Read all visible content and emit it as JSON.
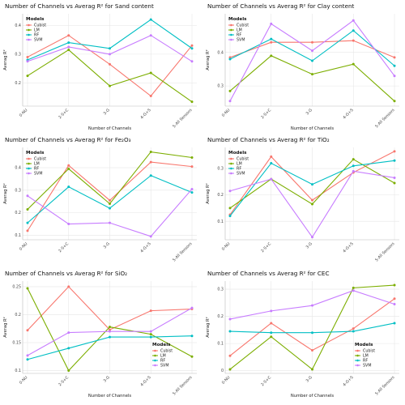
{
  "colors": {
    "Cubist": "#f8766d",
    "LM": "#7cae00",
    "RF": "#00bfc4",
    "SVM": "#c77cff"
  },
  "chart_data": [
    {
      "type": "line",
      "title": "Number of Channels vs Averag R² for Sand content",
      "xlabel": "Number of Channels",
      "ylabel": "Averag R²",
      "categories": [
        "0-NU",
        "2-S+C",
        "3-G",
        "4-G+S",
        "5-All Sensors"
      ],
      "ylim": [
        0.12,
        0.44
      ],
      "yticks": [
        0.2,
        0.3,
        0.4
      ],
      "legend": {
        "title": "Models",
        "position": "top-left"
      },
      "series": [
        {
          "name": "Cubist",
          "values": [
            0.29,
            0.365,
            0.265,
            0.155,
            0.33
          ]
        },
        {
          "name": "LM",
          "values": [
            0.225,
            0.315,
            0.19,
            0.235,
            0.135
          ]
        },
        {
          "name": "RF",
          "values": [
            0.28,
            0.34,
            0.32,
            0.42,
            0.32
          ]
        },
        {
          "name": "SVM",
          "values": [
            0.275,
            0.325,
            0.3,
            0.365,
            0.275
          ]
        }
      ]
    },
    {
      "type": "line",
      "title": "Number of Channels vs Averag R² for Clay content",
      "xlabel": "Number of Channels",
      "ylabel": "Averag R²",
      "categories": [
        "0-NU",
        "2-S+C",
        "3-G",
        "4-G+S",
        "5-All Sensors"
      ],
      "ylim": [
        0.24,
        0.515
      ],
      "yticks": [
        0.3,
        0.4
      ],
      "legend": {
        "title": "Models",
        "position": "top-left"
      },
      "series": [
        {
          "name": "Cubist",
          "values": [
            0.385,
            0.43,
            0.43,
            0.435,
            0.385
          ]
        },
        {
          "name": "LM",
          "values": [
            0.285,
            0.39,
            0.335,
            0.365,
            0.255
          ]
        },
        {
          "name": "RF",
          "values": [
            0.38,
            0.44,
            0.375,
            0.465,
            0.36
          ]
        },
        {
          "name": "SVM",
          "values": [
            0.255,
            0.485,
            0.405,
            0.495,
            0.33
          ]
        }
      ]
    },
    {
      "type": "line",
      "title": "Number of Channels vs Averag R² for Fe₂O₃",
      "xlabel": "",
      "ylabel": "Averag R²",
      "categories": [
        "0-NU",
        "2-S+C",
        "3-G",
        "4-G+S",
        "5-All Sensors"
      ],
      "ylim": [
        0.08,
        0.49
      ],
      "yticks": [
        0.1,
        0.2,
        0.3,
        0.4
      ],
      "legend": {
        "title": "Models",
        "position": "top-left"
      },
      "series": [
        {
          "name": "Cubist",
          "values": [
            0.12,
            0.41,
            0.255,
            0.425,
            0.405
          ]
        },
        {
          "name": "LM",
          "values": [
            0.215,
            0.395,
            0.24,
            0.47,
            0.445
          ]
        },
        {
          "name": "RF",
          "values": [
            0.155,
            0.315,
            0.22,
            0.365,
            0.29
          ]
        },
        {
          "name": "SVM",
          "values": [
            0.275,
            0.15,
            0.155,
            0.095,
            0.305
          ]
        }
      ]
    },
    {
      "type": "line",
      "title": "Number of Channels vs Averag R² for TiO₂",
      "xlabel": "",
      "ylabel": "Averag R²",
      "categories": [
        "0-NU",
        "2-S+C",
        "3-G",
        "4-G+S",
        "5-All Sensors"
      ],
      "ylim": [
        0.03,
        0.38
      ],
      "yticks": [
        0.1,
        0.2,
        0.3
      ],
      "legend": {
        "title": "Models",
        "position": "top-left"
      },
      "series": [
        {
          "name": "Cubist",
          "values": [
            0.125,
            0.345,
            0.18,
            0.285,
            0.365
          ]
        },
        {
          "name": "LM",
          "values": [
            0.15,
            0.26,
            0.165,
            0.335,
            0.245
          ]
        },
        {
          "name": "RF",
          "values": [
            0.12,
            0.32,
            0.24,
            0.31,
            0.33
          ]
        },
        {
          "name": "SVM",
          "values": [
            0.215,
            0.26,
            0.04,
            0.29,
            0.265
          ]
        }
      ]
    },
    {
      "type": "line",
      "title": "Number of Channels vs Averag R² for SiO₂",
      "xlabel": "Number of Channels",
      "ylabel": "Averag R²",
      "categories": [
        "0-NU",
        "2-S+C",
        "3-G",
        "4-G+S",
        "5-All Sensors"
      ],
      "ylim": [
        0.095,
        0.26
      ],
      "yticks": [
        0.1,
        0.15,
        0.2,
        0.25
      ],
      "legend": {
        "title": "Models",
        "position": "bottom-right"
      },
      "series": [
        {
          "name": "Cubist",
          "values": [
            0.172,
            0.25,
            0.173,
            0.207,
            0.21
          ]
        },
        {
          "name": "LM",
          "values": [
            0.247,
            0.1,
            0.178,
            0.165,
            0.125
          ]
        },
        {
          "name": "RF",
          "values": [
            0.12,
            0.14,
            0.16,
            0.16,
            0.162
          ]
        },
        {
          "name": "SVM",
          "values": [
            0.127,
            0.168,
            0.17,
            0.17,
            0.212
          ]
        }
      ]
    },
    {
      "type": "line",
      "title": "Number of Channels vs Averag R² for CEC",
      "xlabel": "Number of Channels",
      "ylabel": "Averag R²",
      "categories": [
        "0-NU",
        "2-S+C",
        "3-G",
        "4-G+S",
        "5-All Sensors"
      ],
      "ylim": [
        -0.01,
        0.33
      ],
      "yticks": [
        0.0,
        0.1,
        0.2,
        0.3
      ],
      "legend": {
        "title": "Models",
        "position": "bottom-right"
      },
      "series": [
        {
          "name": "Cubist",
          "values": [
            0.055,
            0.175,
            0.075,
            0.155,
            0.265
          ]
        },
        {
          "name": "LM",
          "values": [
            0.005,
            0.125,
            0.005,
            0.305,
            0.315
          ]
        },
        {
          "name": "RF",
          "values": [
            0.145,
            0.14,
            0.14,
            0.145,
            0.175
          ]
        },
        {
          "name": "SVM",
          "values": [
            0.19,
            0.22,
            0.24,
            0.295,
            0.245
          ]
        }
      ]
    }
  ]
}
